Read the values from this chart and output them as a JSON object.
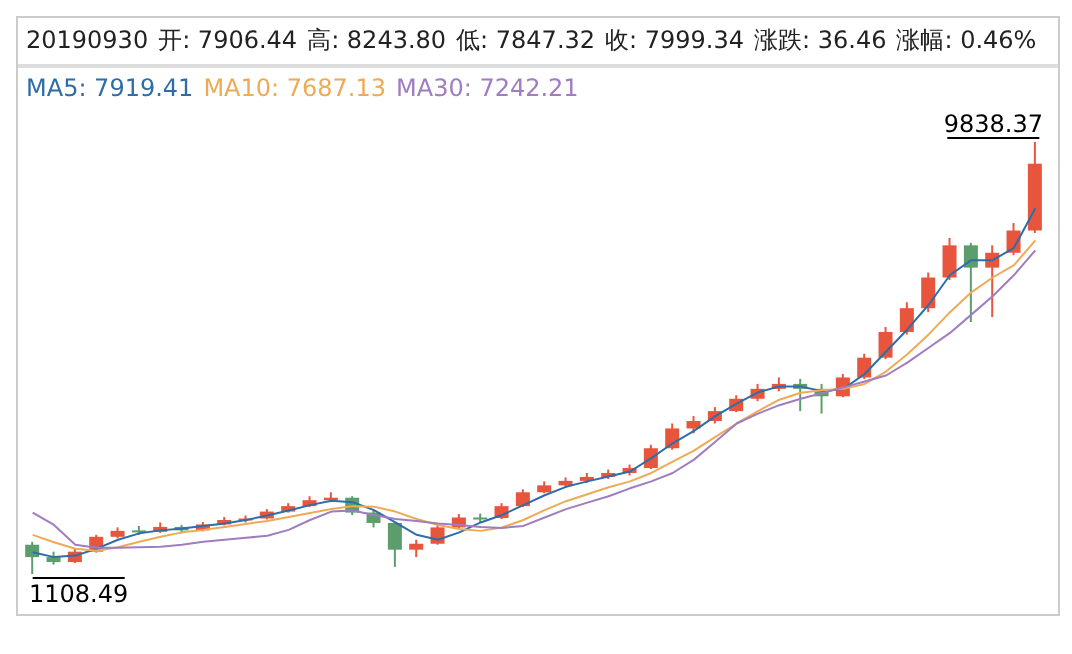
{
  "chart_data": {
    "type": "candlestick",
    "tick_labels": false,
    "categories": [
      null,
      null,
      null,
      null,
      null,
      null,
      null,
      null,
      null,
      null,
      null,
      null,
      null,
      null,
      null,
      null,
      null,
      null,
      null,
      null,
      null,
      null,
      null,
      null,
      null,
      null,
      null,
      null,
      null,
      null,
      null,
      null,
      null,
      null,
      null,
      null,
      null,
      null,
      null,
      null,
      null,
      null,
      null,
      null,
      null,
      null,
      null,
      null
    ],
    "ohlc": [
      [
        1700,
        1760,
        1108.49,
        1450
      ],
      [
        1450,
        1560,
        1300,
        1350
      ],
      [
        1350,
        1620,
        1330,
        1560
      ],
      [
        1560,
        1900,
        1540,
        1860
      ],
      [
        1860,
        2050,
        1830,
        1980
      ],
      [
        1990,
        2080,
        1900,
        1960
      ],
      [
        1960,
        2150,
        1940,
        2060
      ],
      [
        2060,
        2100,
        1930,
        1990
      ],
      [
        1990,
        2160,
        1970,
        2110
      ],
      [
        2110,
        2260,
        2090,
        2200
      ],
      [
        2200,
        2290,
        2150,
        2230
      ],
      [
        2230,
        2420,
        2210,
        2370
      ],
      [
        2370,
        2540,
        2350,
        2480
      ],
      [
        2480,
        2680,
        2460,
        2600
      ],
      [
        2600,
        2760,
        2560,
        2650
      ],
      [
        2650,
        2680,
        2300,
        2350
      ],
      [
        2350,
        2400,
        2050,
        2140
      ],
      [
        2140,
        2160,
        1251,
        1600
      ],
      [
        1600,
        1800,
        1450,
        1720
      ],
      [
        1720,
        2120,
        1700,
        2050
      ],
      [
        2050,
        2320,
        2020,
        2250
      ],
      [
        2250,
        2330,
        2150,
        2240
      ],
      [
        2240,
        2540,
        2220,
        2480
      ],
      [
        2480,
        2820,
        2460,
        2760
      ],
      [
        2760,
        2980,
        2740,
        2900
      ],
      [
        2900,
        3060,
        2850,
        2990
      ],
      [
        2990,
        3150,
        2950,
        3070
      ],
      [
        3070,
        3220,
        3030,
        3150
      ],
      [
        3150,
        3320,
        3100,
        3250
      ],
      [
        3250,
        3720,
        3230,
        3650
      ],
      [
        3650,
        4150,
        3620,
        4050
      ],
      [
        4050,
        4300,
        3950,
        4200
      ],
      [
        4200,
        4480,
        4150,
        4400
      ],
      [
        4400,
        4720,
        4380,
        4650
      ],
      [
        4650,
        4950,
        4600,
        4850
      ],
      [
        4850,
        5080,
        4800,
        4950
      ],
      [
        4950,
        5050,
        4400,
        4850
      ],
      [
        4850,
        4950,
        4350,
        4700
      ],
      [
        4700,
        5150,
        4680,
        5080
      ],
      [
        5080,
        5560,
        5050,
        5480
      ],
      [
        5480,
        6100,
        5450,
        6000
      ],
      [
        6000,
        6600,
        5950,
        6480
      ],
      [
        6480,
        7200,
        6400,
        7100
      ],
      [
        7100,
        7900,
        7050,
        7750
      ],
      [
        7750,
        7800,
        6200,
        7300
      ],
      [
        7300,
        7750,
        6300,
        7600
      ],
      [
        7600,
        8200,
        7550,
        8050
      ],
      [
        8050,
        9838.37,
        8000,
        9400
      ]
    ],
    "colors": [
      "#5b9e6b",
      "#5b9e6b",
      "#e8553d",
      "#e8553d",
      "#e8553d",
      "#5b9e6b",
      "#e8553d",
      "#5b9e6b",
      "#e8553d",
      "#e8553d",
      "#e8553d",
      "#e8553d",
      "#e8553d",
      "#e8553d",
      "#e8553d",
      "#5b9e6b",
      "#5b9e6b",
      "#5b9e6b",
      "#e8553d",
      "#e8553d",
      "#e8553d",
      "#5b9e6b",
      "#e8553d",
      "#e8553d",
      "#e8553d",
      "#e8553d",
      "#e8553d",
      "#e8553d",
      "#e8553d",
      "#e8553d",
      "#e8553d",
      "#e8553d",
      "#e8553d",
      "#e8553d",
      "#e8553d",
      "#e8553d",
      "#5b9e6b",
      "#5b9e6b",
      "#e8553d",
      "#e8553d",
      "#e8553d",
      "#e8553d",
      "#e8553d",
      "#e8553d",
      "#5b9e6b",
      "#e8553d",
      "#e8553d",
      "#e8553d"
    ],
    "series": [
      {
        "type": "line",
        "color": "#2e6da8",
        "values": [
          1550,
          1450,
          1480,
          1620,
          1800,
          1930,
          1990,
          2030,
          2080,
          2130,
          2200,
          2290,
          2390,
          2500,
          2590,
          2560,
          2400,
          2150,
          1900,
          1800,
          1950,
          2150,
          2300,
          2500,
          2700,
          2870,
          2980,
          3080,
          3180,
          3450,
          3750,
          4000,
          4300,
          4550,
          4780,
          4900,
          4900,
          4800,
          4850,
          5150,
          5600,
          6050,
          6550,
          7150,
          7450,
          7450,
          7700,
          8500
        ]
      },
      {
        "type": "line",
        "color": "#eeaa55",
        "values": [
          1900,
          1750,
          1620,
          1580,
          1650,
          1760,
          1860,
          1950,
          2000,
          2060,
          2120,
          2180,
          2260,
          2340,
          2420,
          2480,
          2470,
          2370,
          2220,
          2100,
          2020,
          1980,
          2050,
          2200,
          2400,
          2580,
          2720,
          2860,
          2980,
          3150,
          3380,
          3600,
          3880,
          4150,
          4400,
          4630,
          4770,
          4820,
          4850,
          4950,
          5200,
          5550,
          5950,
          6400,
          6800,
          7100,
          7350,
          7850
        ]
      },
      {
        "type": "line",
        "color": "#a07cc0",
        "values": [
          2350,
          2100,
          1700,
          1640,
          1640,
          1650,
          1660,
          1700,
          1760,
          1800,
          1840,
          1880,
          2000,
          2200,
          2370,
          2390,
          2300,
          2220,
          2180,
          2130,
          2100,
          2060,
          2040,
          2080,
          2250,
          2420,
          2550,
          2680,
          2840,
          2980,
          3150,
          3420,
          3780,
          4150,
          4350,
          4520,
          4650,
          4760,
          4880,
          5000,
          5120,
          5380,
          5680,
          5980,
          6350,
          6720,
          7150,
          7650
        ]
      }
    ],
    "annotations": [
      "20190930",
      "开: 7906.44",
      "高: 8243.80",
      "低: 7847.32",
      "收: 7999.34",
      "涨跌: 36.46",
      "涨幅: 0.46%",
      "MA5: 7919.41",
      "MA10: 7687.13",
      "MA30: 7242.21",
      "9838.37",
      "1108.49"
    ]
  }
}
